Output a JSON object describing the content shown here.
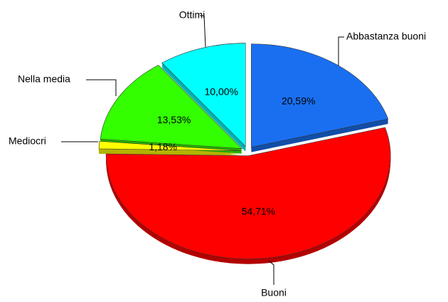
{
  "chart_data": {
    "type": "pie",
    "categories": [
      "Abbastanza buoni",
      "Buoni",
      "Mediocri",
      "Nella media",
      "Ottimi"
    ],
    "values": [
      20.59,
      54.71,
      1.18,
      13.53,
      10.0
    ],
    "value_labels": [
      "20,59%",
      "54,71%",
      "1,18%",
      "13,53%",
      "10,00%"
    ],
    "colors": [
      "#1a6ff0",
      "#ff0000",
      "#ffff00",
      "#33ff00",
      "#00ffff"
    ]
  }
}
